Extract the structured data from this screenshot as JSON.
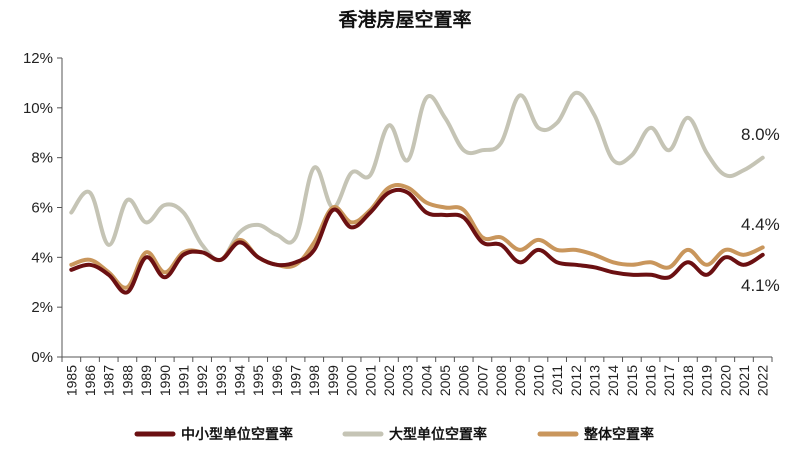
{
  "chart_data": {
    "type": "line",
    "title": "香港房屋空置率",
    "xlabel": "",
    "ylabel": "",
    "ylim": [
      0,
      12
    ],
    "yticks": [
      "0%",
      "2%",
      "4%",
      "6%",
      "8%",
      "10%",
      "12%"
    ],
    "ytick_values": [
      0,
      2,
      4,
      6,
      8,
      10,
      12
    ],
    "x": [
      "1985",
      "1986",
      "1987",
      "1988",
      "1989",
      "1990",
      "1991",
      "1992",
      "1993",
      "1994",
      "1995",
      "1996",
      "1997",
      "1998",
      "1999",
      "2000",
      "2001",
      "2002",
      "2003",
      "2004",
      "2005",
      "2006",
      "2007",
      "2008",
      "2009",
      "2010",
      "2011",
      "2012",
      "2013",
      "2014",
      "2015",
      "2016",
      "2017",
      "2018",
      "2019",
      "2020",
      "2021",
      "2022"
    ],
    "grid": false,
    "legend_position": "bottom",
    "series": [
      {
        "name": "中小型单位空置率",
        "color": "#6B1012",
        "values": [
          3.5,
          3.7,
          3.3,
          2.6,
          4.0,
          3.2,
          4.1,
          4.2,
          3.9,
          4.6,
          4.0,
          3.7,
          3.8,
          4.3,
          5.9,
          5.2,
          5.8,
          6.6,
          6.6,
          5.8,
          5.7,
          5.6,
          4.6,
          4.5,
          3.8,
          4.3,
          3.8,
          3.7,
          3.6,
          3.4,
          3.3,
          3.3,
          3.2,
          3.8,
          3.3,
          4.0,
          3.7,
          4.1
        ],
        "end_label": "4.1%"
      },
      {
        "name": "大型单位空置率",
        "color": "#C5C4B5",
        "values": [
          5.8,
          6.6,
          4.5,
          6.3,
          5.4,
          6.1,
          5.8,
          4.5,
          3.9,
          5.0,
          5.3,
          4.9,
          4.8,
          7.6,
          6.0,
          7.4,
          7.3,
          9.3,
          7.9,
          10.4,
          9.6,
          8.3,
          8.3,
          8.6,
          10.5,
          9.2,
          9.4,
          10.6,
          9.7,
          7.9,
          8.1,
          9.2,
          8.3,
          9.6,
          8.2,
          7.3,
          7.5,
          8.0
        ],
        "end_label": "8.0%"
      },
      {
        "name": "整体空置率",
        "color": "#C9965C",
        "values": [
          3.7,
          3.9,
          3.4,
          2.8,
          4.2,
          3.4,
          4.2,
          4.2,
          3.9,
          4.7,
          4.0,
          3.7,
          3.7,
          4.6,
          6.0,
          5.4,
          5.9,
          6.8,
          6.8,
          6.2,
          6.0,
          5.9,
          4.8,
          4.8,
          4.3,
          4.7,
          4.3,
          4.3,
          4.1,
          3.8,
          3.7,
          3.8,
          3.6,
          4.3,
          3.7,
          4.3,
          4.1,
          4.4
        ],
        "end_label": "4.4%"
      }
    ]
  }
}
